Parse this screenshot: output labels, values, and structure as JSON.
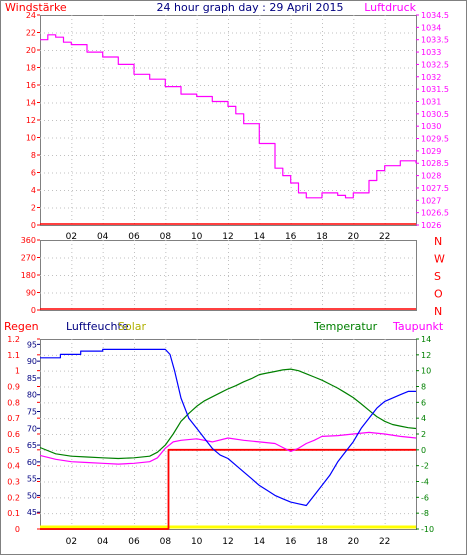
{
  "title": "24 hour graph day : 29 April 2015",
  "colors": {
    "frame": "#808080",
    "grid": "#c0c0c0",
    "red": "#ff0000",
    "magenta": "#ff00ff",
    "navy": "#000080",
    "blue": "#0000ff",
    "green": "#008000",
    "yellow": "#ffff00",
    "title": "#000080",
    "tick": "#000000"
  },
  "chart_data": [
    {
      "type": "line",
      "left_label": "Windstärke",
      "right_label": "Luftdruck",
      "x_ticks": [
        "02",
        "04",
        "06",
        "08",
        "10",
        "12",
        "14",
        "16",
        "18",
        "20",
        "22"
      ],
      "xlim": [
        0,
        24
      ],
      "y_left_ticks": [
        "0",
        "2",
        "4",
        "6",
        "8",
        "10",
        "12",
        "14",
        "16",
        "18",
        "20",
        "22",
        "24"
      ],
      "ylim_left": [
        0,
        24
      ],
      "y_right_ticks": [
        "1026",
        "1026.5",
        "1027",
        "1027.5",
        "1028",
        "1028.5",
        "1029",
        "1029.5",
        "1030",
        "1030.5",
        "1031",
        "1031.5",
        "1032",
        "1032.5",
        "1033",
        "1033.5",
        "1034",
        "1034.5"
      ],
      "ylim_right": [
        1026,
        1034.5
      ],
      "grid": true,
      "series": [
        {
          "axis": "right",
          "x": [
            0,
            0.5,
            1,
            1.5,
            2,
            3,
            4,
            5,
            6,
            7,
            8,
            9,
            10,
            11,
            12,
            12.5,
            13,
            14,
            15,
            15.5,
            16,
            16.5,
            17,
            18,
            19,
            19.5,
            20,
            21,
            21.5,
            22,
            23,
            24
          ],
          "values": [
            1033.5,
            1033.7,
            1033.6,
            1033.4,
            1033.3,
            1033.0,
            1032.8,
            1032.5,
            1032.1,
            1031.9,
            1031.6,
            1031.3,
            1031.2,
            1031.0,
            1030.8,
            1030.5,
            1030.1,
            1029.3,
            1028.3,
            1028.0,
            1027.7,
            1027.3,
            1027.1,
            1027.3,
            1027.2,
            1027.1,
            1027.3,
            1027.8,
            1028.2,
            1028.4,
            1028.6,
            1028.5
          ]
        },
        {
          "axis": "left",
          "x": [
            0,
            24
          ],
          "values": [
            0,
            0
          ]
        }
      ]
    },
    {
      "type": "line",
      "right_labels": [
        "N",
        "W",
        "S",
        "O",
        "N"
      ],
      "x_ticks": [],
      "xlim": [
        0,
        24
      ],
      "y_left_ticks": [
        "0",
        "90",
        "180",
        "270",
        "360"
      ],
      "ylim_left": [
        0,
        360
      ],
      "grid": true,
      "series": [
        {
          "axis": "left",
          "x": [
            0,
            24
          ],
          "values": [
            0,
            0
          ]
        }
      ]
    },
    {
      "type": "line",
      "legend": [
        "Regen",
        "Luftfeuchte",
        "Solar",
        "Temperatur",
        "Taupunkt"
      ],
      "x_ticks": [
        "02",
        "04",
        "06",
        "08",
        "10",
        "12",
        "14",
        "16",
        "18",
        "20",
        "22"
      ],
      "xlim": [
        0,
        24
      ],
      "y_rain_ticks": [
        "0",
        "0.1",
        "0.2",
        "0.3",
        "0.4",
        "0.5",
        "0.6",
        "0.7",
        "0.8",
        "0.9",
        "1",
        "1.1",
        "1.2"
      ],
      "ylim_rain": [
        0,
        1.2
      ],
      "y_humidity_ticks": [
        "45",
        "50",
        "55",
        "60",
        "65",
        "70",
        "75",
        "80",
        "85",
        "90",
        "95"
      ],
      "ylim_humidity": [
        40,
        96.6
      ],
      "y_temp_ticks": [
        "-10",
        "-8",
        "-6",
        "-4",
        "-2",
        "0",
        "2",
        "4",
        "6",
        "8",
        "10",
        "12",
        "14"
      ],
      "ylim_temp": [
        -10,
        14
      ],
      "grid": true,
      "series": [
        {
          "name": "Regen",
          "axis": "rain",
          "x": [
            0,
            8.2,
            8.2,
            24
          ],
          "values": [
            0,
            0,
            0.5,
            0.5
          ]
        },
        {
          "name": "Luftfeuchte",
          "axis": "humidity",
          "x": [
            0,
            1.3,
            1.3,
            2.6,
            2.6,
            4,
            4,
            8,
            8.3,
            8.6,
            9,
            9.5,
            10,
            10.5,
            11,
            11.5,
            12,
            12.5,
            13,
            13.5,
            14,
            14.5,
            15,
            15.5,
            16,
            16.5,
            17,
            17.5,
            18,
            18.5,
            19,
            19.5,
            20,
            20.5,
            21,
            21.5,
            22,
            22.5,
            23,
            23.5,
            24
          ],
          "values": [
            91,
            91,
            92,
            92,
            93,
            93,
            93.5,
            93.5,
            92,
            87,
            79,
            73,
            70,
            67,
            64,
            62,
            61,
            59,
            57,
            55,
            53,
            51.5,
            50,
            49,
            48,
            47.5,
            47,
            50,
            53,
            56,
            60,
            63,
            66,
            70,
            73,
            76,
            78,
            79,
            80,
            81,
            81
          ]
        },
        {
          "name": "Temperatur",
          "axis": "temp",
          "x": [
            0,
            1,
            2,
            3,
            4,
            5,
            6,
            7,
            7.5,
            8,
            8.5,
            9,
            9.5,
            10,
            10.5,
            11,
            11.5,
            12,
            12.5,
            13,
            13.5,
            14,
            14.5,
            15,
            15.5,
            16,
            16.5,
            17,
            17.5,
            18,
            18.5,
            19,
            19.5,
            20,
            20.5,
            21,
            21.5,
            22,
            22.5,
            23,
            23.5,
            24
          ],
          "values": [
            0.3,
            -0.5,
            -0.8,
            -0.9,
            -1.0,
            -1.1,
            -1.0,
            -0.8,
            -0.3,
            0.6,
            2.0,
            3.6,
            4.6,
            5.5,
            6.2,
            6.7,
            7.2,
            7.7,
            8.1,
            8.6,
            9.0,
            9.5,
            9.7,
            9.9,
            10.1,
            10.2,
            10.0,
            9.6,
            9.2,
            8.8,
            8.3,
            7.8,
            7.2,
            6.6,
            5.8,
            5.0,
            4.2,
            3.6,
            3.2,
            3.0,
            2.8,
            2.7
          ]
        },
        {
          "name": "Taupunkt",
          "axis": "temp",
          "x": [
            0,
            1,
            2,
            3,
            4,
            5,
            6,
            7,
            7.5,
            8,
            8.5,
            9,
            10,
            11,
            12,
            13,
            14,
            15,
            15.5,
            16,
            16.5,
            17,
            17.5,
            18,
            19,
            20,
            21,
            22,
            23,
            24
          ],
          "values": [
            -0.7,
            -1.2,
            -1.5,
            -1.6,
            -1.7,
            -1.8,
            -1.7,
            -1.5,
            -1.0,
            0.2,
            1.0,
            1.2,
            1.4,
            1.0,
            1.5,
            1.2,
            1.0,
            0.8,
            0.3,
            -0.2,
            0.2,
            0.8,
            1.2,
            1.7,
            1.8,
            2.0,
            2.2,
            2.0,
            1.7,
            1.5
          ]
        },
        {
          "name": "Solar",
          "axis": "rain",
          "x": [
            0,
            24
          ],
          "values": [
            0,
            0
          ]
        }
      ]
    }
  ]
}
